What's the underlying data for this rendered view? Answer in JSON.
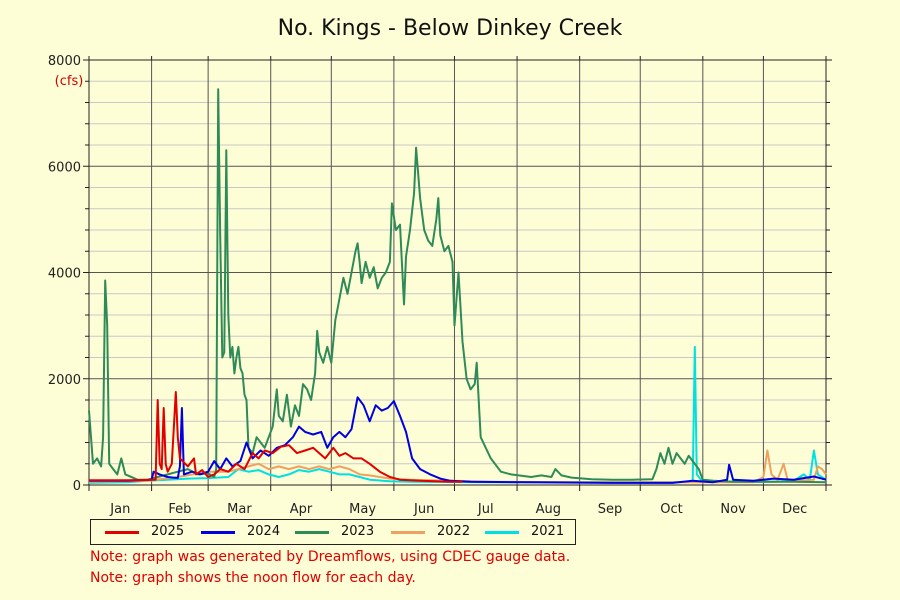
{
  "chart_data": {
    "type": "line",
    "title": "No. Kings - Below Dinkey Creek",
    "y_unit": "(cfs)",
    "ylim": [
      0,
      8000
    ],
    "yticks": [
      0,
      2000,
      4000,
      6000,
      8000
    ],
    "xlabels": [
      "Jan",
      "Feb",
      "Mar",
      "Apr",
      "May",
      "Jun",
      "Jul",
      "Aug",
      "Sep",
      "Oct",
      "Nov",
      "Dec"
    ],
    "xlim_day_of_year": [
      1,
      366
    ],
    "grid": true,
    "legend_placement": "bottom",
    "series": [
      {
        "name": "2025",
        "color": "#e00000",
        "points": [
          [
            1,
            90
          ],
          [
            20,
            90
          ],
          [
            34,
            100
          ],
          [
            35,
            1600
          ],
          [
            36,
            400
          ],
          [
            37,
            300
          ],
          [
            38,
            1450
          ],
          [
            39,
            400
          ],
          [
            40,
            250
          ],
          [
            42,
            400
          ],
          [
            44,
            1750
          ],
          [
            45,
            900
          ],
          [
            46,
            500
          ],
          [
            50,
            350
          ],
          [
            53,
            500
          ],
          [
            54,
            200
          ],
          [
            57,
            280
          ],
          [
            60,
            150
          ],
          [
            63,
            200
          ],
          [
            66,
            300
          ],
          [
            70,
            250
          ],
          [
            74,
            400
          ],
          [
            78,
            300
          ],
          [
            82,
            600
          ],
          [
            85,
            500
          ],
          [
            88,
            650
          ],
          [
            92,
            600
          ],
          [
            96,
            720
          ],
          [
            100,
            750
          ],
          [
            104,
            600
          ],
          [
            108,
            650
          ],
          [
            112,
            700
          ],
          [
            115,
            600
          ],
          [
            118,
            500
          ],
          [
            122,
            700
          ],
          [
            125,
            550
          ],
          [
            128,
            600
          ],
          [
            132,
            500
          ],
          [
            136,
            500
          ],
          [
            140,
            400
          ],
          [
            145,
            250
          ],
          [
            150,
            150
          ],
          [
            155,
            100
          ],
          [
            165,
            80
          ],
          [
            180,
            60
          ],
          [
            186,
            60
          ]
        ]
      },
      {
        "name": "2024",
        "color": "#0000e0",
        "points": [
          [
            1,
            80
          ],
          [
            20,
            80
          ],
          [
            32,
            100
          ],
          [
            33,
            250
          ],
          [
            36,
            200
          ],
          [
            40,
            150
          ],
          [
            45,
            130
          ],
          [
            46,
            350
          ],
          [
            47,
            1450
          ],
          [
            48,
            200
          ],
          [
            52,
            250
          ],
          [
            56,
            200
          ],
          [
            60,
            250
          ],
          [
            63,
            450
          ],
          [
            66,
            300
          ],
          [
            69,
            500
          ],
          [
            72,
            350
          ],
          [
            76,
            450
          ],
          [
            79,
            800
          ],
          [
            82,
            500
          ],
          [
            86,
            650
          ],
          [
            90,
            550
          ],
          [
            94,
            700
          ],
          [
            98,
            750
          ],
          [
            102,
            900
          ],
          [
            105,
            1100
          ],
          [
            108,
            1000
          ],
          [
            112,
            950
          ],
          [
            116,
            1000
          ],
          [
            119,
            700
          ],
          [
            122,
            900
          ],
          [
            125,
            1000
          ],
          [
            128,
            900
          ],
          [
            131,
            1050
          ],
          [
            134,
            1650
          ],
          [
            137,
            1500
          ],
          [
            140,
            1200
          ],
          [
            143,
            1500
          ],
          [
            146,
            1400
          ],
          [
            149,
            1450
          ],
          [
            152,
            1580
          ],
          [
            155,
            1300
          ],
          [
            158,
            1000
          ],
          [
            161,
            500
          ],
          [
            165,
            300
          ],
          [
            170,
            200
          ],
          [
            175,
            120
          ],
          [
            180,
            80
          ],
          [
            190,
            60
          ],
          [
            220,
            50
          ],
          [
            260,
            40
          ],
          [
            290,
            40
          ],
          [
            300,
            80
          ],
          [
            310,
            50
          ],
          [
            317,
            100
          ],
          [
            318,
            380
          ],
          [
            320,
            100
          ],
          [
            330,
            80
          ],
          [
            340,
            120
          ],
          [
            350,
            100
          ],
          [
            360,
            160
          ],
          [
            366,
            100
          ]
        ]
      },
      {
        "name": "2023",
        "color": "#2e8b57",
        "points": [
          [
            1,
            1400
          ],
          [
            3,
            400
          ],
          [
            5,
            500
          ],
          [
            7,
            350
          ],
          [
            8,
            900
          ],
          [
            9,
            3850
          ],
          [
            10,
            3000
          ],
          [
            11,
            400
          ],
          [
            13,
            300
          ],
          [
            15,
            200
          ],
          [
            17,
            500
          ],
          [
            19,
            200
          ],
          [
            25,
            100
          ],
          [
            30,
            100
          ],
          [
            35,
            150
          ],
          [
            40,
            200
          ],
          [
            45,
            250
          ],
          [
            50,
            300
          ],
          [
            55,
            200
          ],
          [
            60,
            220
          ],
          [
            63,
            150
          ],
          [
            64,
            300
          ],
          [
            65,
            7450
          ],
          [
            66,
            4700
          ],
          [
            67,
            2400
          ],
          [
            68,
            2500
          ],
          [
            69,
            6300
          ],
          [
            70,
            3200
          ],
          [
            71,
            2400
          ],
          [
            72,
            2600
          ],
          [
            73,
            2100
          ],
          [
            74,
            2400
          ],
          [
            75,
            2600
          ],
          [
            76,
            2200
          ],
          [
            77,
            2100
          ],
          [
            78,
            1700
          ],
          [
            79,
            1600
          ],
          [
            80,
            700
          ],
          [
            82,
            600
          ],
          [
            84,
            900
          ],
          [
            86,
            800
          ],
          [
            88,
            700
          ],
          [
            90,
            900
          ],
          [
            92,
            1100
          ],
          [
            94,
            1800
          ],
          [
            95,
            1300
          ],
          [
            97,
            1200
          ],
          [
            99,
            1700
          ],
          [
            101,
            1100
          ],
          [
            103,
            1500
          ],
          [
            105,
            1300
          ],
          [
            107,
            1900
          ],
          [
            109,
            1800
          ],
          [
            111,
            1600
          ],
          [
            113,
            2100
          ],
          [
            114,
            2900
          ],
          [
            115,
            2500
          ],
          [
            117,
            2300
          ],
          [
            119,
            2600
          ],
          [
            121,
            2300
          ],
          [
            123,
            3100
          ],
          [
            125,
            3500
          ],
          [
            127,
            3900
          ],
          [
            129,
            3600
          ],
          [
            131,
            4000
          ],
          [
            133,
            4400
          ],
          [
            134,
            4550
          ],
          [
            135,
            4200
          ],
          [
            136,
            3800
          ],
          [
            138,
            4200
          ],
          [
            140,
            3900
          ],
          [
            142,
            4100
          ],
          [
            144,
            3700
          ],
          [
            146,
            3900
          ],
          [
            148,
            4000
          ],
          [
            150,
            4200
          ],
          [
            151,
            5300
          ],
          [
            153,
            4800
          ],
          [
            155,
            4900
          ],
          [
            157,
            3400
          ],
          [
            158,
            4300
          ],
          [
            160,
            4800
          ],
          [
            162,
            5500
          ],
          [
            163,
            6350
          ],
          [
            165,
            5400
          ],
          [
            167,
            4800
          ],
          [
            169,
            4600
          ],
          [
            171,
            4500
          ],
          [
            173,
            5000
          ],
          [
            174,
            5400
          ],
          [
            175,
            4700
          ],
          [
            177,
            4400
          ],
          [
            179,
            4500
          ],
          [
            181,
            4200
          ],
          [
            182,
            3000
          ],
          [
            184,
            4000
          ],
          [
            186,
            2700
          ],
          [
            188,
            2000
          ],
          [
            190,
            1800
          ],
          [
            192,
            1900
          ],
          [
            193,
            2300
          ],
          [
            195,
            900
          ],
          [
            200,
            500
          ],
          [
            205,
            250
          ],
          [
            210,
            200
          ],
          [
            220,
            150
          ],
          [
            225,
            180
          ],
          [
            230,
            150
          ],
          [
            232,
            300
          ],
          [
            235,
            180
          ],
          [
            240,
            140
          ],
          [
            250,
            110
          ],
          [
            260,
            100
          ],
          [
            270,
            100
          ],
          [
            280,
            110
          ],
          [
            282,
            300
          ],
          [
            284,
            600
          ],
          [
            286,
            400
          ],
          [
            288,
            700
          ],
          [
            290,
            400
          ],
          [
            292,
            600
          ],
          [
            294,
            500
          ],
          [
            296,
            400
          ],
          [
            298,
            550
          ],
          [
            300,
            450
          ],
          [
            303,
            300
          ],
          [
            305,
            100
          ],
          [
            310,
            80
          ],
          [
            320,
            60
          ],
          [
            330,
            60
          ],
          [
            340,
            60
          ],
          [
            350,
            60
          ],
          [
            366,
            50
          ]
        ]
      },
      {
        "name": "2022",
        "color": "#f0a060",
        "points": [
          [
            1,
            60
          ],
          [
            30,
            80
          ],
          [
            45,
            150
          ],
          [
            60,
            250
          ],
          [
            70,
            250
          ],
          [
            80,
            350
          ],
          [
            85,
            400
          ],
          [
            90,
            300
          ],
          [
            95,
            350
          ],
          [
            100,
            300
          ],
          [
            105,
            350
          ],
          [
            110,
            300
          ],
          [
            115,
            350
          ],
          [
            120,
            300
          ],
          [
            125,
            350
          ],
          [
            130,
            300
          ],
          [
            135,
            200
          ],
          [
            140,
            180
          ],
          [
            150,
            120
          ],
          [
            160,
            100
          ],
          [
            180,
            80
          ],
          [
            200,
            60
          ],
          [
            250,
            50
          ],
          [
            300,
            50
          ],
          [
            330,
            50
          ],
          [
            335,
            150
          ],
          [
            337,
            650
          ],
          [
            339,
            200
          ],
          [
            342,
            100
          ],
          [
            345,
            400
          ],
          [
            347,
            100
          ],
          [
            350,
            80
          ],
          [
            360,
            100
          ],
          [
            362,
            350
          ],
          [
            364,
            300
          ],
          [
            366,
            200
          ]
        ]
      },
      {
        "name": "2021",
        "color": "#00e0e0",
        "points": [
          [
            1,
            40
          ],
          [
            20,
            50
          ],
          [
            30,
            80
          ],
          [
            40,
            100
          ],
          [
            50,
            120
          ],
          [
            60,
            130
          ],
          [
            70,
            150
          ],
          [
            75,
            300
          ],
          [
            80,
            250
          ],
          [
            85,
            280
          ],
          [
            90,
            200
          ],
          [
            95,
            150
          ],
          [
            100,
            200
          ],
          [
            105,
            280
          ],
          [
            110,
            250
          ],
          [
            115,
            300
          ],
          [
            120,
            250
          ],
          [
            125,
            200
          ],
          [
            130,
            200
          ],
          [
            135,
            150
          ],
          [
            140,
            100
          ],
          [
            150,
            70
          ],
          [
            160,
            60
          ],
          [
            200,
            50
          ],
          [
            250,
            50
          ],
          [
            290,
            50
          ],
          [
            300,
            60
          ],
          [
            301,
            2600
          ],
          [
            302,
            200
          ],
          [
            304,
            100
          ],
          [
            310,
            80
          ],
          [
            320,
            60
          ],
          [
            340,
            60
          ],
          [
            350,
            80
          ],
          [
            355,
            200
          ],
          [
            358,
            100
          ],
          [
            360,
            650
          ],
          [
            362,
            200
          ],
          [
            366,
            100
          ]
        ]
      }
    ]
  },
  "notes": [
    "Note: graph was generated by Dreamflows, using CDEC gauge data.",
    "Note: graph shows the noon flow for each day."
  ]
}
